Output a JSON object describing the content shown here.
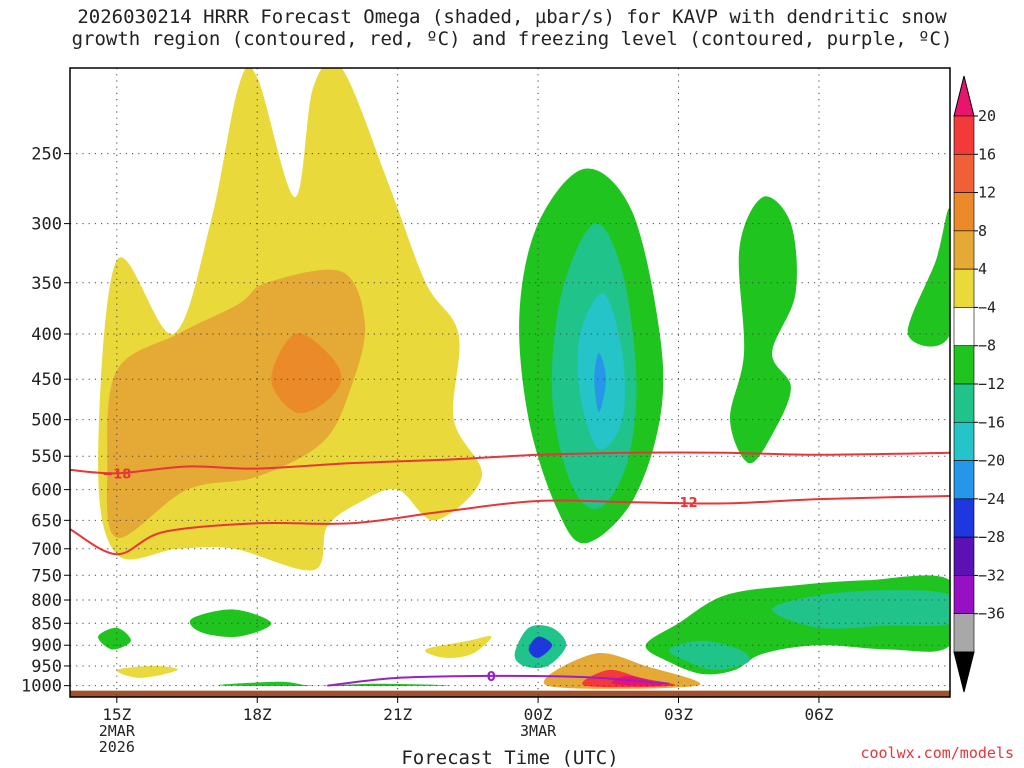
{
  "title": {
    "line1": "2026030214 HRRR Forecast Omega (shaded, µbar/s) for KAVP with dendritic snow",
    "line2": "growth region (contoured, red, ºC) and freezing level (contoured, purple, ºC)"
  },
  "watermark": "coolwx.com/models",
  "chart_data": {
    "type": "contour",
    "title": "2026030214 HRRR Forecast Omega (shaded, µbar/s) for KAVP with dendritic snow growth region (contoured, red, ºC) and freezing level (contoured, purple, ºC)",
    "xlabel": "Forecast Time (UTC)",
    "ylabel": "",
    "xlim": [
      14.0,
      32.8
    ],
    "ylim": [
      1030,
      200
    ],
    "y_ticks": [
      250,
      300,
      350,
      400,
      450,
      500,
      550,
      600,
      650,
      700,
      750,
      800,
      850,
      900,
      950,
      1000
    ],
    "x_ticks": [
      {
        "hour": 15,
        "lines": [
          "15Z",
          "2MAR",
          "2026"
        ]
      },
      {
        "hour": 18,
        "lines": [
          "18Z"
        ]
      },
      {
        "hour": 21,
        "lines": [
          "21Z"
        ]
      },
      {
        "hour": 24,
        "lines": [
          "00Z",
          "3MAR"
        ]
      },
      {
        "hour": 27,
        "lines": [
          "03Z"
        ]
      },
      {
        "hour": 30,
        "lines": [
          "06Z"
        ]
      }
    ],
    "colorbar": {
      "labels": [
        "20",
        "16",
        "12",
        "8",
        "4",
        "−4",
        "−8",
        "−12",
        "−16",
        "−20",
        "−24",
        "−28",
        "−32",
        "−36"
      ],
      "colors": [
        "#e8146e",
        "#f23a3a",
        "#ef5f38",
        "#eb8a28",
        "#e5a935",
        "#e9d93a",
        "#ffffff",
        "#1fc41f",
        "#20c38a",
        "#25c4c8",
        "#2596e8",
        "#1e37de",
        "#5b11b5",
        "#9611c4",
        "#a8a8a8",
        "#000000"
      ]
    },
    "omega_regions": [
      {
        "name": "yellow-upper-left",
        "level": 4,
        "color": "#e9d93a",
        "points": [
          [
            15.0,
            710
          ],
          [
            14.6,
            560
          ],
          [
            15.0,
            330
          ],
          [
            16.2,
            400
          ],
          [
            17.0,
            300
          ],
          [
            17.6,
            210
          ],
          [
            18.0,
            205
          ],
          [
            18.8,
            280
          ],
          [
            19.2,
            210
          ],
          [
            19.8,
            200
          ],
          [
            20.8,
            270
          ],
          [
            21.6,
            350
          ],
          [
            22.3,
            400
          ],
          [
            22.2,
            500
          ],
          [
            22.8,
            580
          ],
          [
            21.8,
            650
          ],
          [
            21.0,
            600
          ],
          [
            20.2,
            620
          ],
          [
            19.5,
            660
          ],
          [
            19.2,
            740
          ],
          [
            17.5,
            700
          ],
          [
            16.3,
            700
          ]
        ]
      },
      {
        "name": "orange-upper-left",
        "level": 8,
        "color": "#e5a935",
        "points": [
          [
            15.0,
            680
          ],
          [
            14.8,
            560
          ],
          [
            15.0,
            440
          ],
          [
            16.3,
            400
          ],
          [
            17.6,
            370
          ],
          [
            18.2,
            350
          ],
          [
            19.8,
            340
          ],
          [
            20.3,
            390
          ],
          [
            20.0,
            460
          ],
          [
            19.4,
            530
          ],
          [
            18.0,
            580
          ],
          [
            16.5,
            600
          ]
        ]
      },
      {
        "name": "dark-orange-core",
        "level": 12,
        "color": "#eb8a28",
        "points": [
          [
            18.3,
            450
          ],
          [
            18.8,
            400
          ],
          [
            19.5,
            420
          ],
          [
            19.8,
            450
          ],
          [
            19.4,
            480
          ],
          [
            18.8,
            490
          ]
        ]
      },
      {
        "name": "green-center",
        "level": -4,
        "color": "#1fc41f",
        "points": [
          [
            24.0,
            300
          ],
          [
            25.0,
            260
          ],
          [
            26.0,
            290
          ],
          [
            26.6,
            400
          ],
          [
            26.6,
            500
          ],
          [
            26.0,
            620
          ],
          [
            25.0,
            690
          ],
          [
            24.4,
            630
          ],
          [
            23.8,
            500
          ],
          [
            23.6,
            380
          ]
        ]
      },
      {
        "name": "teal-center",
        "level": -8,
        "color": "#20c38a",
        "points": [
          [
            24.5,
            360
          ],
          [
            25.2,
            300
          ],
          [
            25.8,
            340
          ],
          [
            26.1,
            450
          ],
          [
            25.9,
            560
          ],
          [
            25.3,
            630
          ],
          [
            24.7,
            590
          ],
          [
            24.3,
            470
          ]
        ]
      },
      {
        "name": "cyan-center",
        "level": -12,
        "color": "#25c4c8",
        "points": [
          [
            24.9,
            400
          ],
          [
            25.4,
            360
          ],
          [
            25.8,
            420
          ],
          [
            25.8,
            500
          ],
          [
            25.3,
            540
          ],
          [
            24.9,
            470
          ]
        ]
      },
      {
        "name": "blue-center-core",
        "level": -16,
        "color": "#2596e8",
        "points": [
          [
            25.2,
            450
          ],
          [
            25.3,
            420
          ],
          [
            25.45,
            450
          ],
          [
            25.3,
            490
          ]
        ]
      },
      {
        "name": "green-right-upper",
        "level": -4,
        "color": "#1fc41f",
        "points": [
          [
            28.3,
            320
          ],
          [
            28.8,
            280
          ],
          [
            29.4,
            300
          ],
          [
            29.5,
            360
          ],
          [
            29.0,
            420
          ],
          [
            29.4,
            460
          ],
          [
            29.0,
            520
          ],
          [
            28.5,
            560
          ],
          [
            28.1,
            500
          ],
          [
            28.4,
            420
          ]
        ]
      },
      {
        "name": "green-right-edge",
        "level": -4,
        "color": "#1fc41f",
        "points": [
          [
            31.9,
            400
          ],
          [
            32.5,
            330
          ],
          [
            32.8,
            290
          ],
          [
            32.8,
            400
          ]
        ]
      },
      {
        "name": "green-lower-right",
        "level": -4,
        "color": "#1fc41f",
        "points": [
          [
            26.3,
            900
          ],
          [
            27.0,
            850
          ],
          [
            28.0,
            790
          ],
          [
            29.5,
            770
          ],
          [
            31.0,
            760
          ],
          [
            32.8,
            760
          ],
          [
            32.8,
            900
          ],
          [
            31.5,
            910
          ],
          [
            30.0,
            900
          ],
          [
            28.8,
            920
          ],
          [
            28.2,
            960
          ],
          [
            27.5,
            970
          ],
          [
            26.8,
            940
          ]
        ]
      },
      {
        "name": "teal-lower-right",
        "level": -8,
        "color": "#20c38a",
        "points": [
          [
            29.0,
            820
          ],
          [
            30.0,
            790
          ],
          [
            31.5,
            780
          ],
          [
            32.8,
            790
          ],
          [
            32.8,
            850
          ],
          [
            31.5,
            855
          ],
          [
            30.0,
            860
          ]
        ]
      },
      {
        "name": "teal-lower-mid",
        "level": -8,
        "color": "#20c38a",
        "points": [
          [
            26.8,
            910
          ],
          [
            27.5,
            890
          ],
          [
            28.3,
            910
          ],
          [
            28.5,
            940
          ],
          [
            27.8,
            960
          ],
          [
            27.2,
            940
          ]
        ]
      },
      {
        "name": "green-lower-left-blob",
        "level": -4,
        "color": "#1fc41f",
        "points": [
          [
            16.6,
            840
          ],
          [
            17.5,
            820
          ],
          [
            18.3,
            850
          ],
          [
            17.6,
            880
          ],
          [
            16.8,
            870
          ]
        ]
      },
      {
        "name": "green-small-left",
        "level": -4,
        "color": "#1fc41f",
        "points": [
          [
            14.6,
            880
          ],
          [
            15.0,
            860
          ],
          [
            15.3,
            890
          ],
          [
            14.9,
            910
          ]
        ]
      },
      {
        "name": "yellow-lower-left",
        "level": 4,
        "color": "#e9d93a",
        "points": [
          [
            15.0,
            960
          ],
          [
            15.8,
            950
          ],
          [
            16.3,
            960
          ],
          [
            15.5,
            980
          ]
        ]
      },
      {
        "name": "yellow-lower-mid",
        "level": 4,
        "color": "#e9d93a",
        "points": [
          [
            21.6,
            910
          ],
          [
            22.5,
            890
          ],
          [
            23.0,
            880
          ],
          [
            22.6,
            920
          ],
          [
            22.0,
            930
          ]
        ]
      },
      {
        "name": "blue-lower-blob",
        "level": -8,
        "color": "#20c38a",
        "points": [
          [
            23.5,
            920
          ],
          [
            23.8,
            860
          ],
          [
            24.3,
            860
          ],
          [
            24.6,
            900
          ],
          [
            24.2,
            950
          ],
          [
            23.7,
            950
          ]
        ]
      },
      {
        "name": "blue-lower-core",
        "level": -16,
        "color": "#1e37de",
        "points": [
          [
            23.8,
            910
          ],
          [
            24.0,
            880
          ],
          [
            24.3,
            900
          ],
          [
            24.0,
            930
          ]
        ]
      },
      {
        "name": "red-lower",
        "level": 8,
        "color": "#e5a935",
        "points": [
          [
            24.2,
            1000
          ],
          [
            25.2,
            920
          ],
          [
            26.3,
            950
          ],
          [
            27.4,
            1000
          ]
        ]
      },
      {
        "name": "red-lower-core",
        "level": 16,
        "color": "#f23a3a",
        "points": [
          [
            25.0,
            1000
          ],
          [
            25.5,
            960
          ],
          [
            26.2,
            980
          ],
          [
            26.9,
            1000
          ]
        ]
      },
      {
        "name": "magenta-lower-core",
        "level": 20,
        "color": "#e8146e",
        "points": [
          [
            25.6,
            995
          ],
          [
            25.9,
            975
          ],
          [
            26.5,
            990
          ],
          [
            26.6,
            1000
          ]
        ]
      },
      {
        "name": "green-ground-strip",
        "level": -4,
        "color": "#1fc41f",
        "points": [
          [
            17.3,
            1000
          ],
          [
            18.5,
            990
          ],
          [
            19.2,
            1000
          ],
          [
            20.5,
            995
          ],
          [
            22.0,
            1000
          ]
        ]
      }
    ],
    "contours": [
      {
        "name": "dgz-top-18C",
        "color": "#e8353a",
        "label": "−18",
        "label_at": [
          15.0,
          575
        ],
        "points": [
          [
            14.0,
            570
          ],
          [
            15.0,
            575
          ],
          [
            16.5,
            565
          ],
          [
            18.0,
            568
          ],
          [
            20.0,
            560
          ],
          [
            22.0,
            555
          ],
          [
            24.0,
            548
          ],
          [
            26.0,
            545
          ],
          [
            28.0,
            545
          ],
          [
            30.0,
            548
          ],
          [
            32.8,
            545
          ]
        ]
      },
      {
        "name": "dgz-bottom-12C",
        "color": "#e8353a",
        "label": "−12",
        "label_at": [
          27.1,
          620
        ],
        "points": [
          [
            14.0,
            665
          ],
          [
            15.0,
            710
          ],
          [
            16.0,
            670
          ],
          [
            18.0,
            655
          ],
          [
            20.0,
            655
          ],
          [
            22.0,
            635
          ],
          [
            24.0,
            618
          ],
          [
            26.0,
            620
          ],
          [
            28.0,
            622
          ],
          [
            30.0,
            615
          ],
          [
            32.8,
            610
          ]
        ]
      },
      {
        "name": "freezing-level-0C",
        "color": "#9b1fc4",
        "label": "0",
        "label_at": [
          23.0,
          975
        ],
        "points": [
          [
            19.5,
            1000
          ],
          [
            21.0,
            980
          ],
          [
            23.0,
            975
          ],
          [
            25.0,
            978
          ],
          [
            26.8,
            995
          ]
        ]
      }
    ]
  }
}
